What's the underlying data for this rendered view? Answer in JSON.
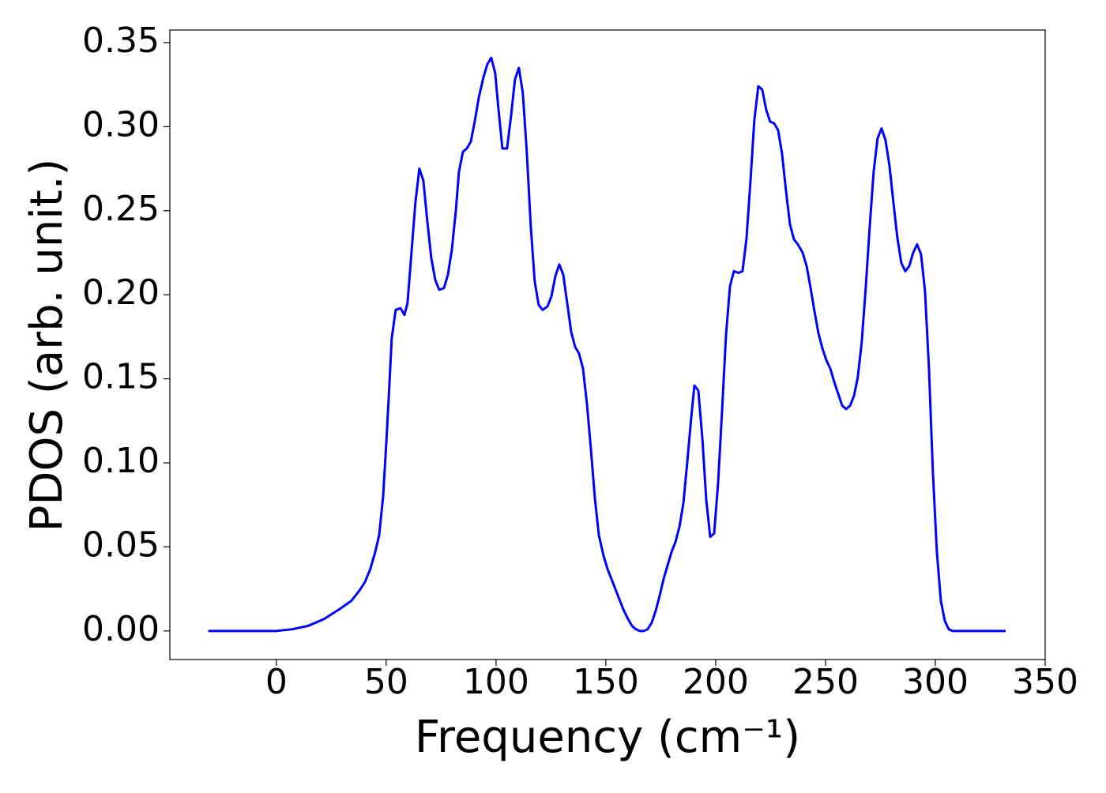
{
  "chart_data": {
    "type": "line",
    "xlabel": "Frequency (cm⁻¹)",
    "ylabel": "PDOS (arb. unit.)",
    "xlim": [
      -48.5,
      350
    ],
    "ylim": [
      -0.017,
      0.3575
    ],
    "xticks": [
      0,
      50,
      100,
      150,
      200,
      250,
      300,
      350
    ],
    "yticks": [
      {
        "value": 0,
        "label": "0.00"
      },
      {
        "value": 0.05,
        "label": "0.05"
      },
      {
        "value": 0.1,
        "label": "0.10"
      },
      {
        "value": 0.15,
        "label": "0.15"
      },
      {
        "value": 0.2,
        "label": "0.20"
      },
      {
        "value": 0.25,
        "label": "0.25"
      },
      {
        "value": 0.3,
        "label": "0.30"
      },
      {
        "value": 0.35,
        "label": "0.35"
      }
    ],
    "grid": false,
    "series": [
      {
        "color": "#0000ff",
        "x": [
          -31,
          0,
          7.2,
          14.4,
          21.6,
          28.8,
          34.2,
          37.8,
          40.3,
          42.8,
          45,
          46.8,
          48.6,
          50,
          51.4,
          52.5,
          54.3,
          56.5,
          58.3,
          59.7,
          61.2,
          63.3,
          65.1,
          66.9,
          68.7,
          70.5,
          72.3,
          74.1,
          76.3,
          78.1,
          79.9,
          81.7,
          83.1,
          84.9,
          86.7,
          88.5,
          90.3,
          92.1,
          94.2,
          96,
          97.8,
          99.6,
          101,
          102.9,
          105,
          106.8,
          108.6,
          110.4,
          112.2,
          114,
          115.8,
          117.6,
          119.4,
          121.2,
          123.4,
          125.2,
          127,
          128.8,
          130.6,
          132.4,
          134.2,
          136,
          137.8,
          139.6,
          141.4,
          143.2,
          145,
          146.8,
          148.9,
          150.7,
          152.5,
          154.3,
          156.1,
          157.9,
          159.7,
          161.9,
          163.7,
          165.5,
          167.3,
          169,
          170.9,
          172.7,
          174.5,
          176.3,
          178.1,
          179.9,
          181.7,
          183.5,
          185.3,
          187.1,
          188.8,
          190.3,
          192.1,
          193.9,
          195.7,
          197.5,
          199.3,
          201.1,
          202.9,
          204.7,
          206.5,
          208.3,
          210.4,
          212.2,
          214,
          215.8,
          217.6,
          219.4,
          221.2,
          223,
          224.8,
          226.6,
          228.4,
          230.2,
          232,
          233.8,
          235.6,
          237.4,
          239.6,
          241.4,
          243.2,
          245,
          246.8,
          248.6,
          250.4,
          252.2,
          254,
          255.8,
          257.6,
          259.4,
          261.2,
          263,
          264.7,
          266.5,
          268.3,
          270.1,
          271.9,
          273.7,
          275.5,
          277.3,
          279.1,
          280.9,
          282.7,
          284.5,
          286.3,
          288.1,
          289.9,
          291.7,
          293.5,
          295.3,
          297.1,
          298.9,
          300.7,
          302.5,
          304.3,
          306.1,
          307.9,
          332
        ],
        "values": [
          0,
          0,
          0.001,
          0.003,
          0.007,
          0.013,
          0.018,
          0.024,
          0.029,
          0.037,
          0.047,
          0.057,
          0.08,
          0.111,
          0.145,
          0.174,
          0.191,
          0.192,
          0.188,
          0.195,
          0.22,
          0.255,
          0.275,
          0.268,
          0.244,
          0.222,
          0.209,
          0.203,
          0.204,
          0.212,
          0.227,
          0.25,
          0.273,
          0.285,
          0.287,
          0.291,
          0.303,
          0.317,
          0.329,
          0.337,
          0.341,
          0.332,
          0.312,
          0.287,
          0.287,
          0.306,
          0.328,
          0.335,
          0.32,
          0.285,
          0.241,
          0.208,
          0.194,
          0.191,
          0.193,
          0.199,
          0.211,
          0.218,
          0.212,
          0.195,
          0.178,
          0.169,
          0.165,
          0.156,
          0.135,
          0.108,
          0.079,
          0.057,
          0.045,
          0.037,
          0.031,
          0.025,
          0.019,
          0.013,
          0.008,
          0.003,
          0.001,
          0,
          0,
          0.001,
          0.005,
          0.012,
          0.021,
          0.031,
          0.039,
          0.047,
          0.053,
          0.062,
          0.076,
          0.101,
          0.126,
          0.146,
          0.143,
          0.115,
          0.078,
          0.056,
          0.058,
          0.088,
          0.131,
          0.176,
          0.205,
          0.214,
          0.213,
          0.214,
          0.233,
          0.267,
          0.304,
          0.324,
          0.322,
          0.31,
          0.303,
          0.302,
          0.298,
          0.284,
          0.262,
          0.242,
          0.233,
          0.23,
          0.225,
          0.217,
          0.204,
          0.19,
          0.177,
          0.168,
          0.161,
          0.156,
          0.148,
          0.141,
          0.134,
          0.132,
          0.134,
          0.14,
          0.151,
          0.172,
          0.204,
          0.24,
          0.273,
          0.293,
          0.299,
          0.292,
          0.277,
          0.255,
          0.234,
          0.219,
          0.214,
          0.217,
          0.225,
          0.23,
          0.224,
          0.202,
          0.156,
          0.094,
          0.047,
          0.018,
          0.006,
          0.001,
          0,
          0
        ]
      }
    ]
  }
}
